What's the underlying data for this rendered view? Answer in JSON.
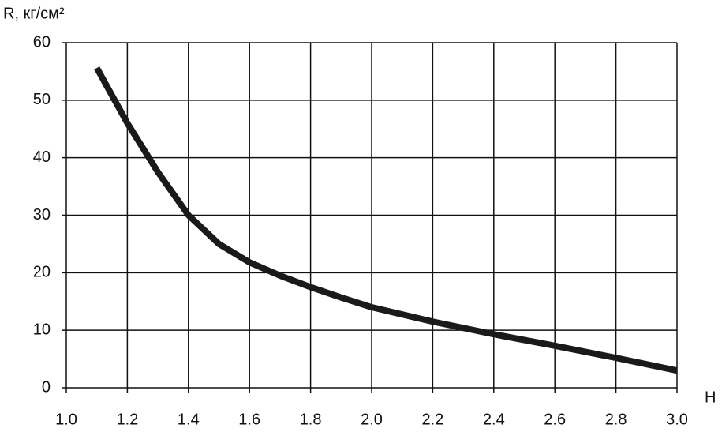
{
  "chart_data": {
    "type": "line",
    "y_label": "R, кг/см²",
    "x_label": "H",
    "x": [
      1.1,
      1.2,
      1.3,
      1.4,
      1.5,
      1.6,
      1.7,
      1.8,
      1.9,
      2.0,
      2.2,
      2.4,
      2.6,
      2.8,
      3.0
    ],
    "series": [
      {
        "color": "#1a1a1a",
        "values": [
          55.6,
          46,
          37.5,
          30,
          25,
          21.8,
          19.5,
          17.5,
          15.7,
          14,
          11.5,
          9.3,
          7.3,
          5.2,
          3
        ]
      }
    ],
    "xlim": [
      1.0,
      3.0
    ],
    "xticks": [
      {
        "value": 1.0,
        "label": "1.0"
      },
      1.2,
      1.4,
      1.6,
      1.8,
      {
        "value": 2.0,
        "label": "2.0"
      },
      2.2,
      2.4,
      2.6,
      2.8,
      {
        "value": 3.0,
        "label": "3.0"
      }
    ],
    "ylim": [
      0,
      60
    ],
    "yticks": [
      0,
      10,
      20,
      30,
      40,
      50,
      60
    ],
    "grid": true
  }
}
